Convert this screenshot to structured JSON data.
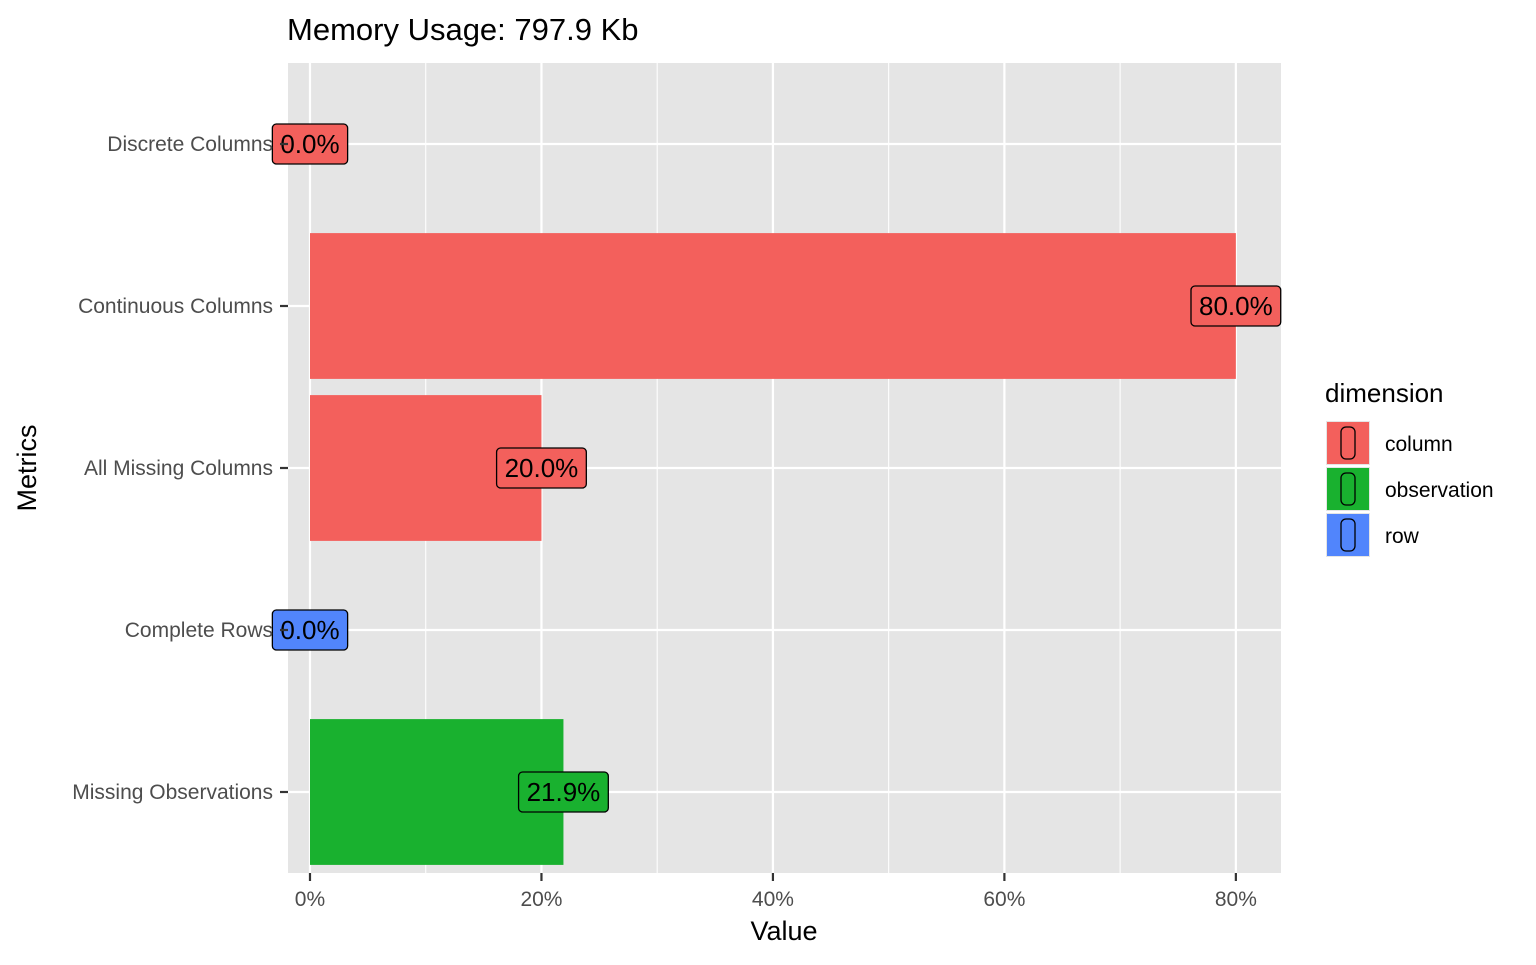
{
  "chart_data": {
    "type": "bar",
    "orientation": "horizontal",
    "title": "Memory Usage: 797.9 Kb",
    "xlabel": "Value",
    "ylabel": "Metrics",
    "xlim": [
      -0.019,
      0.839
    ],
    "x_ticks": [
      {
        "value": 0.0,
        "label": "0%"
      },
      {
        "value": 0.2,
        "label": "20%"
      },
      {
        "value": 0.4,
        "label": "40%"
      },
      {
        "value": 0.6,
        "label": "60%"
      },
      {
        "value": 0.8,
        "label": "80%"
      }
    ],
    "categories": [
      "Discrete Columns",
      "Continuous Columns",
      "All Missing Columns",
      "Complete Rows",
      "Missing Observations"
    ],
    "values": [
      0.0,
      0.8,
      0.2,
      0.0,
      0.219
    ],
    "labels": [
      "0.0%",
      "80.0%",
      "20.0%",
      "0.0%",
      "21.9%"
    ],
    "dimension": [
      "column",
      "column",
      "column",
      "row",
      "observation"
    ],
    "legend": {
      "title": "dimension",
      "position": "right",
      "items": [
        {
          "name": "column",
          "color": "#F3605C"
        },
        {
          "name": "observation",
          "color": "#19B12F"
        },
        {
          "name": "row",
          "color": "#5185FC"
        }
      ]
    },
    "grid": true,
    "panel_background": "#E5E5E5",
    "grid_color": "#FFFFFF"
  }
}
